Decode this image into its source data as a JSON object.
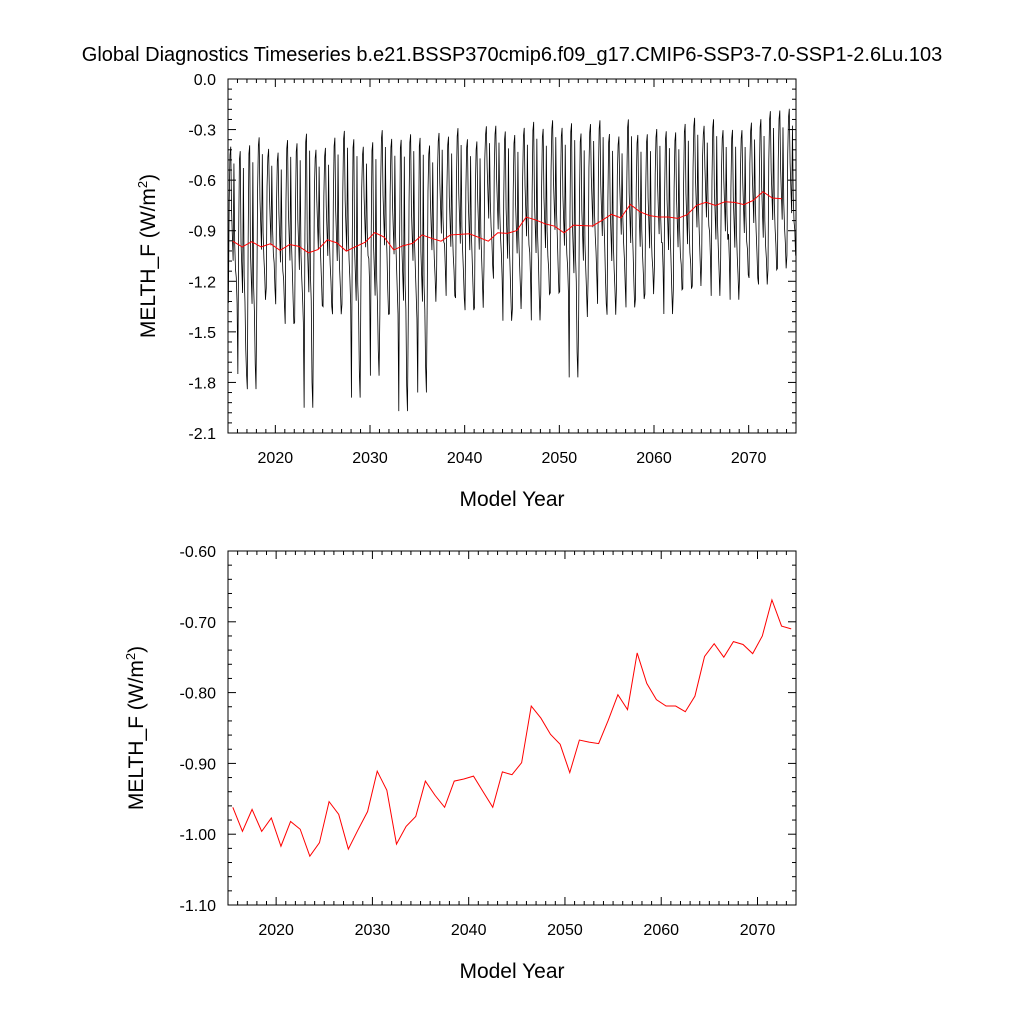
{
  "figure": {
    "title": "Global Diagnostics Timeseries b.e21.BSSP370cmip6.f09_g17.CMIP6-SSP3-7.0-SSP1-2.6Lu.103"
  },
  "colors": {
    "monthly": "#000000",
    "annual": "#ff0000",
    "axis": "#000000"
  },
  "chart_data": [
    {
      "type": "line",
      "panel": "top",
      "title": "",
      "xlabel": "Model Year",
      "ylabel_main": "MELTH_F (W/m",
      "ylabel_sup": "2",
      "ylabel_tail": ")",
      "xlim": [
        2015,
        2075
      ],
      "ylim": [
        -2.1,
        0.0
      ],
      "xticks": [
        2020,
        2030,
        2040,
        2050,
        2060,
        2070
      ],
      "yticks": [
        0.0,
        -0.3,
        -0.6,
        -0.9,
        -1.2,
        -1.5,
        -1.8,
        -2.1
      ],
      "ytick_labels": [
        "0.0",
        "-0.3",
        "-0.6",
        "-0.9",
        "-1.2",
        "-1.5",
        "-1.8",
        "-2.1"
      ],
      "grid": false,
      "series": [
        {
          "kind": "monthly",
          "x_start": 2015.04,
          "x_step": 0.0833,
          "seasonal": {
            "max_start": -0.45,
            "max_end": -0.28,
            "min_start": -1.35,
            "min_end": -1.18,
            "big_dips": [
              {
                "year": 2016,
                "value": -1.75
              },
              {
                "year": 2017,
                "value": -1.84
              },
              {
                "year": 2023,
                "value": -1.95
              },
              {
                "year": 2028,
                "value": -1.89
              },
              {
                "year": 2030,
                "value": -1.76
              },
              {
                "year": 2033,
                "value": -1.97
              },
              {
                "year": 2035,
                "value": -1.86
              },
              {
                "year": 2051,
                "value": -1.77
              }
            ]
          }
        },
        {
          "kind": "annual",
          "x": [
            2015.5,
            2016.5,
            2017.5,
            2018.5,
            2019.5,
            2020.5,
            2021.5,
            2022.5,
            2023.5,
            2024.5,
            2025.5,
            2026.5,
            2027.5,
            2028.5,
            2029.5,
            2030.5,
            2031.5,
            2032.5,
            2033.5,
            2034.5,
            2035.5,
            2036.5,
            2037.5,
            2038.5,
            2039.5,
            2040.5,
            2041.5,
            2042.5,
            2043.5,
            2044.5,
            2045.5,
            2046.5,
            2047.5,
            2048.5,
            2049.5,
            2050.5,
            2051.5,
            2052.5,
            2053.5,
            2054.5,
            2055.5,
            2056.5,
            2057.5,
            2058.5,
            2059.5,
            2060.5,
            2061.5,
            2062.5,
            2063.5,
            2064.5,
            2065.5,
            2066.5,
            2067.5,
            2068.5,
            2069.5,
            2070.5,
            2071.5,
            2072.5,
            2073.5
          ],
          "y": [
            -0.962,
            -0.996,
            -0.965,
            -0.996,
            -0.977,
            -1.017,
            -0.982,
            -0.993,
            -1.031,
            -1.012,
            -0.954,
            -0.972,
            -1.021,
            -0.994,
            -0.968,
            -0.911,
            -0.938,
            -1.014,
            -0.989,
            -0.975,
            -0.925,
            -0.945,
            -0.962,
            -0.925,
            -0.922,
            -0.918,
            -0.94,
            -0.962,
            -0.912,
            -0.916,
            -0.899,
            -0.819,
            -0.836,
            -0.859,
            -0.873,
            -0.913,
            -0.867,
            -0.87,
            -0.872,
            -0.839,
            -0.803,
            -0.824,
            -0.744,
            -0.787,
            -0.81,
            -0.819,
            -0.819,
            -0.827,
            -0.805,
            -0.749,
            -0.731,
            -0.75,
            -0.728,
            -0.732,
            -0.745,
            -0.72,
            -0.669,
            -0.706,
            -0.71
          ]
        }
      ]
    },
    {
      "type": "line",
      "panel": "bottom",
      "title": "",
      "xlabel": "Model Year",
      "ylabel_main": "MELTH_F (W/m",
      "ylabel_sup": "2",
      "ylabel_tail": ")",
      "xlim": [
        2015,
        2074
      ],
      "ylim": [
        -1.1,
        -0.6
      ],
      "xticks": [
        2020,
        2030,
        2040,
        2050,
        2060,
        2070
      ],
      "yticks": [
        -0.6,
        -0.7,
        -0.8,
        -0.9,
        -1.0,
        -1.1
      ],
      "ytick_labels": [
        "-0.60",
        "-0.70",
        "-0.80",
        "-0.90",
        "-1.00",
        "-1.10"
      ],
      "grid": false,
      "series": [
        {
          "kind": "annual",
          "x": [
            2015.5,
            2016.5,
            2017.5,
            2018.5,
            2019.5,
            2020.5,
            2021.5,
            2022.5,
            2023.5,
            2024.5,
            2025.5,
            2026.5,
            2027.5,
            2028.5,
            2029.5,
            2030.5,
            2031.5,
            2032.5,
            2033.5,
            2034.5,
            2035.5,
            2036.5,
            2037.5,
            2038.5,
            2039.5,
            2040.5,
            2041.5,
            2042.5,
            2043.5,
            2044.5,
            2045.5,
            2046.5,
            2047.5,
            2048.5,
            2049.5,
            2050.5,
            2051.5,
            2052.5,
            2053.5,
            2054.5,
            2055.5,
            2056.5,
            2057.5,
            2058.5,
            2059.5,
            2060.5,
            2061.5,
            2062.5,
            2063.5,
            2064.5,
            2065.5,
            2066.5,
            2067.5,
            2068.5,
            2069.5,
            2070.5,
            2071.5,
            2072.5,
            2073.5
          ],
          "y": [
            -0.962,
            -0.996,
            -0.965,
            -0.996,
            -0.977,
            -1.017,
            -0.982,
            -0.993,
            -1.031,
            -1.012,
            -0.954,
            -0.972,
            -1.021,
            -0.994,
            -0.968,
            -0.911,
            -0.938,
            -1.014,
            -0.989,
            -0.975,
            -0.925,
            -0.945,
            -0.962,
            -0.925,
            -0.922,
            -0.918,
            -0.94,
            -0.962,
            -0.912,
            -0.916,
            -0.899,
            -0.819,
            -0.836,
            -0.859,
            -0.873,
            -0.913,
            -0.867,
            -0.87,
            -0.872,
            -0.839,
            -0.803,
            -0.824,
            -0.744,
            -0.787,
            -0.81,
            -0.819,
            -0.819,
            -0.827,
            -0.805,
            -0.749,
            -0.731,
            -0.75,
            -0.728,
            -0.732,
            -0.745,
            -0.72,
            -0.669,
            -0.706,
            -0.71
          ]
        }
      ]
    }
  ]
}
